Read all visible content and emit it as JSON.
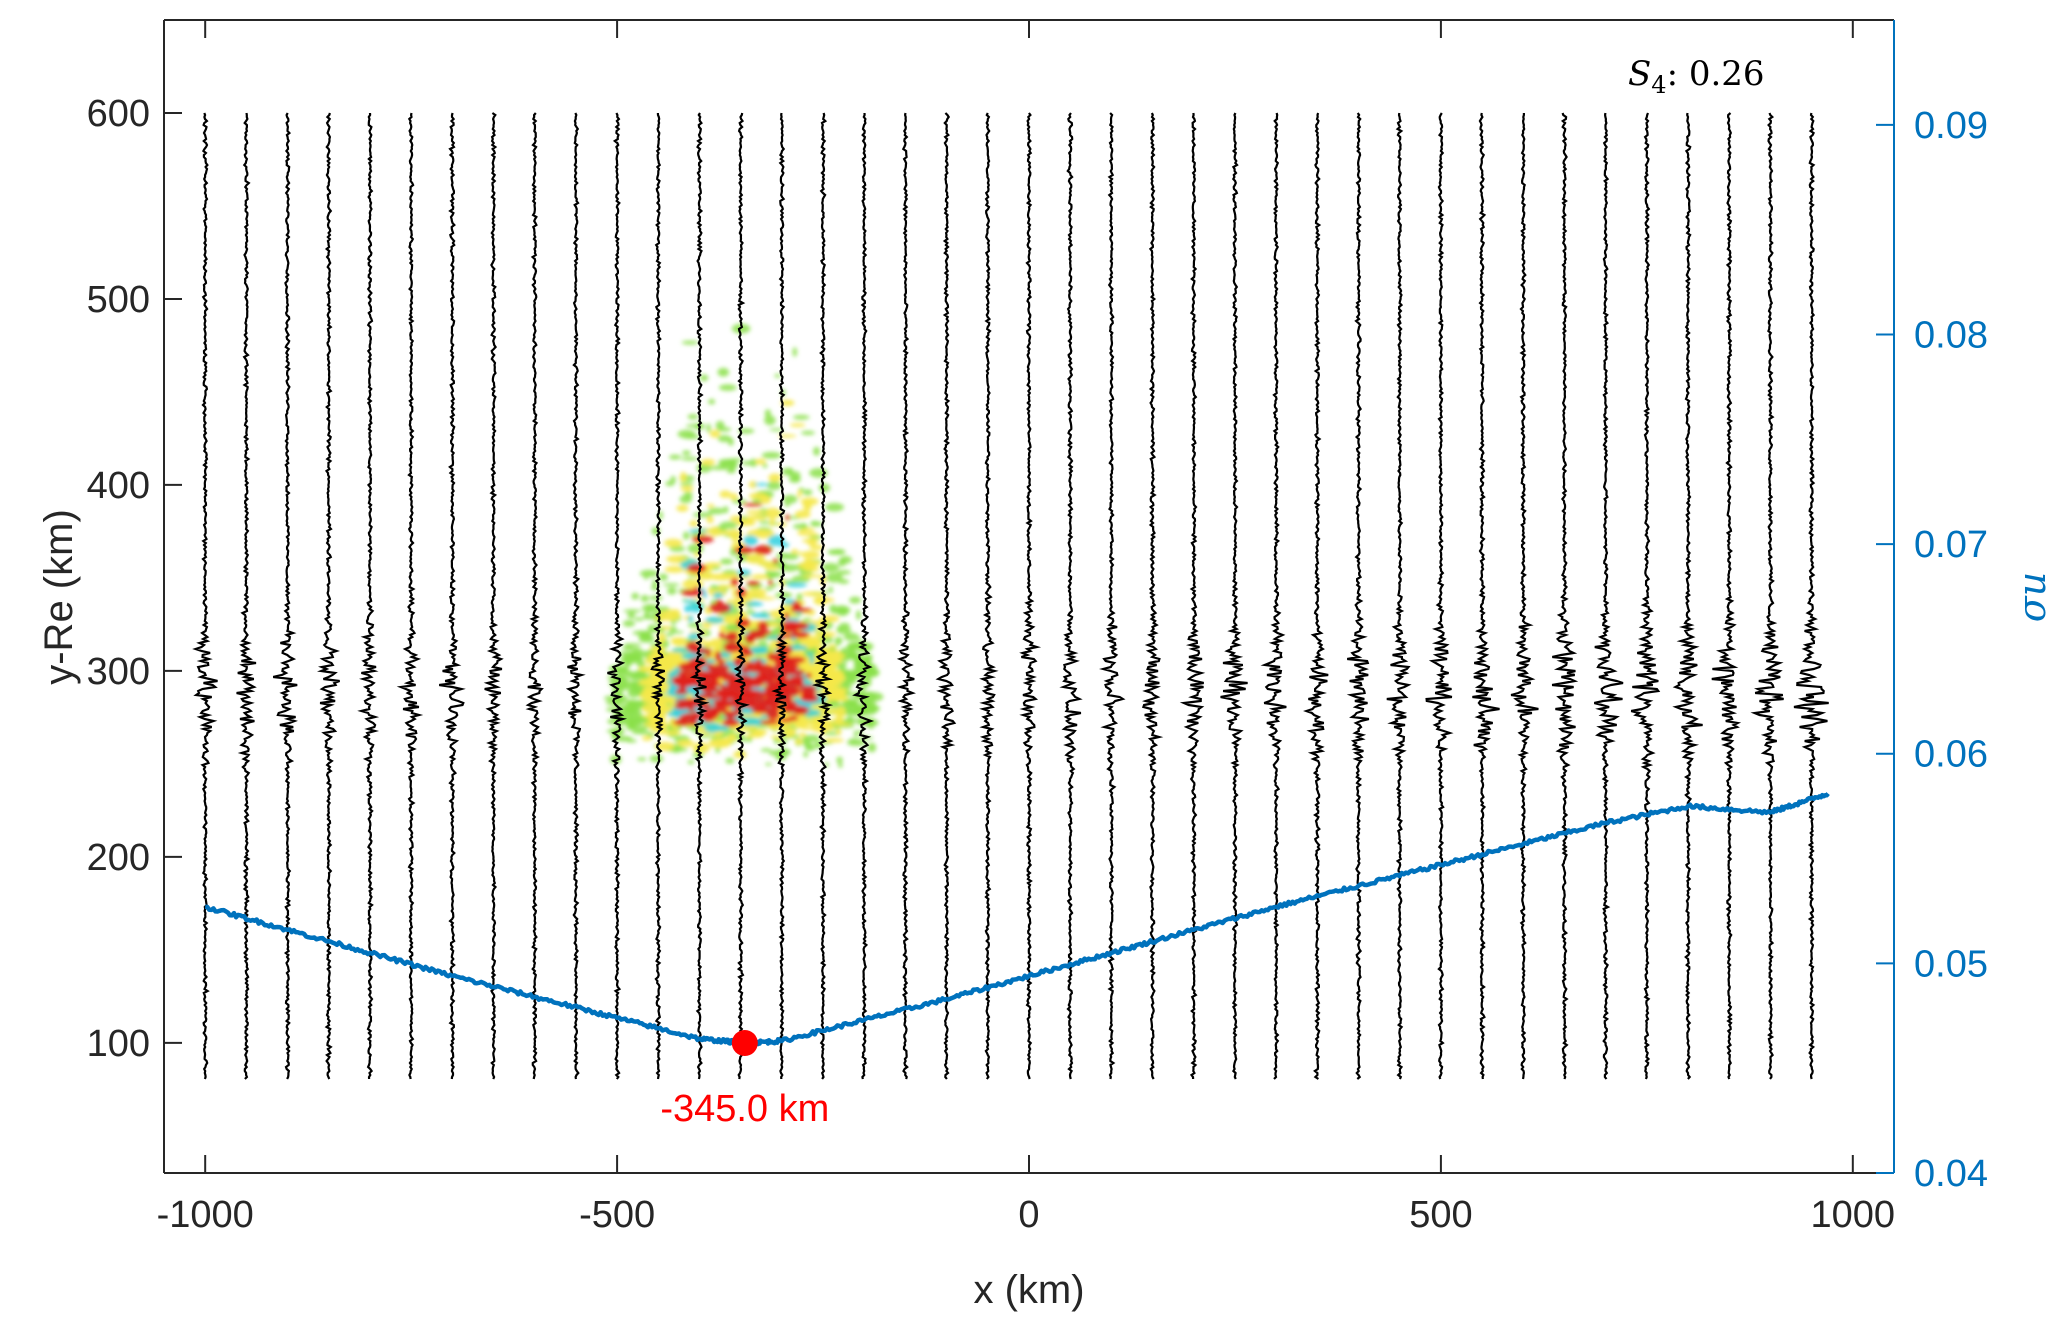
{
  "chart_data": {
    "type": "line",
    "title": "",
    "xlabel": "x (km)",
    "ylabel": "y-Re (km)",
    "y2label": "σu",
    "xlim": [
      -1050,
      1050
    ],
    "ylim": [
      30,
      650
    ],
    "y2lim": [
      0.04,
      0.095
    ],
    "xticks": [
      -1000,
      -500,
      0,
      500,
      1000
    ],
    "yticks": [
      100,
      200,
      300,
      400,
      500,
      600
    ],
    "y2ticks": [
      0.04,
      0.05,
      0.06,
      0.07,
      0.08,
      0.09
    ],
    "xtick_labels": [
      "-1000",
      "-500",
      "0",
      "500",
      "1000"
    ],
    "ytick_labels": [
      "100",
      "200",
      "300",
      "400",
      "500",
      "600"
    ],
    "y2tick_labels": [
      "0.04",
      "0.05",
      "0.06",
      "0.07",
      "0.08",
      "0.09"
    ],
    "grid": false,
    "s4_annotation": {
      "symbol": "S",
      "subscript": "4",
      "value": "0.26"
    },
    "minimum_marker": {
      "x": -345,
      "y2": 0.0462,
      "label": "-345.0 km"
    },
    "colors": {
      "axis": "#262626",
      "right_axis": "#0072BD",
      "sigma_line": "#0072BD",
      "traces": "#000000",
      "marker": "#FF0000",
      "blob_outer": "#8BE04A",
      "blob_mid": "#F5E84A",
      "blob_hot": "#E0221E",
      "blob_cyan": "#30D0E0"
    },
    "traces": {
      "x_positions": [
        -1000,
        -950,
        -900,
        -850,
        -800,
        -750,
        -700,
        -650,
        -600,
        -550,
        -500,
        -450,
        -400,
        -350,
        -300,
        -250,
        -200,
        -150,
        -100,
        -50,
        0,
        50,
        100,
        150,
        200,
        250,
        300,
        350,
        400,
        450,
        500,
        550,
        600,
        650,
        700,
        750,
        800,
        850,
        900,
        950
      ],
      "y_top": 600,
      "y_bottom": 80,
      "burst_center_y": 290
    },
    "scintillation_patch": {
      "x_center": -345,
      "x_half_width": 160,
      "y_bottom": 215,
      "y_top": 490,
      "y_core": 290
    },
    "series": [
      {
        "name": "sigma_u",
        "axis": "right",
        "x": [
          -1000,
          -900,
          -800,
          -700,
          -600,
          -500,
          -400,
          -345,
          -300,
          -200,
          -100,
          0,
          100,
          200,
          300,
          400,
          500,
          600,
          700,
          800,
          900,
          970
        ],
        "y": [
          0.0527,
          0.0516,
          0.0505,
          0.0494,
          0.0484,
          0.0474,
          0.0464,
          0.0462,
          0.0463,
          0.0473,
          0.0483,
          0.0494,
          0.0505,
          0.0516,
          0.0527,
          0.0537,
          0.0547,
          0.0557,
          0.0567,
          0.0575,
          0.0572,
          0.0581
        ]
      }
    ]
  }
}
